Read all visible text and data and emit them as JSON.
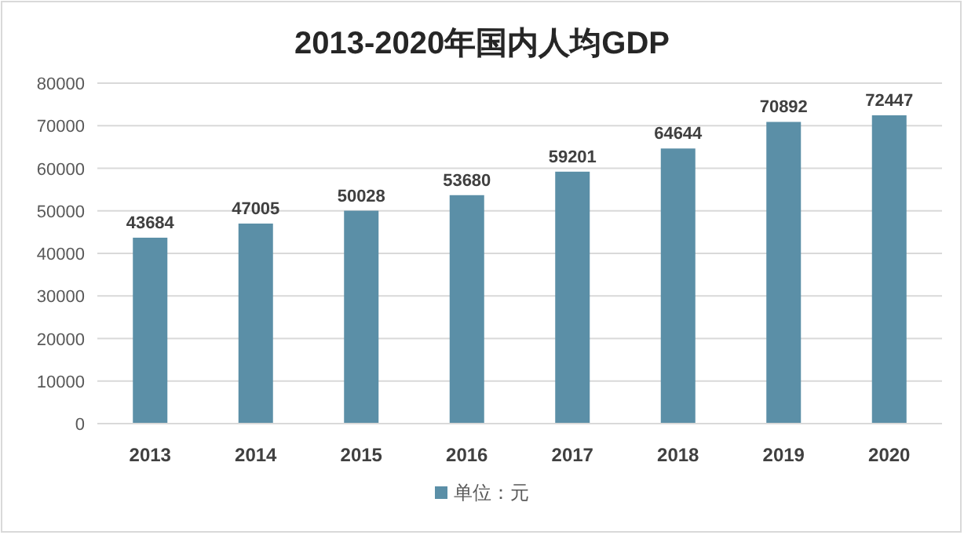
{
  "chart_data": {
    "type": "bar",
    "title": "2013-2020年国内人均GDP",
    "categories": [
      "2013",
      "2014",
      "2015",
      "2016",
      "2017",
      "2018",
      "2019",
      "2020"
    ],
    "series": [
      {
        "name": "单位：元",
        "color": "#5b8fa7",
        "values": [
          43684,
          47005,
          50028,
          53680,
          59201,
          64644,
          70892,
          72447
        ]
      }
    ],
    "ylim": [
      0,
      80000
    ],
    "yticks": [
      0,
      10000,
      20000,
      30000,
      40000,
      50000,
      60000,
      70000,
      80000
    ],
    "grid": "y",
    "legend": "bottom",
    "data_labels": true
  }
}
